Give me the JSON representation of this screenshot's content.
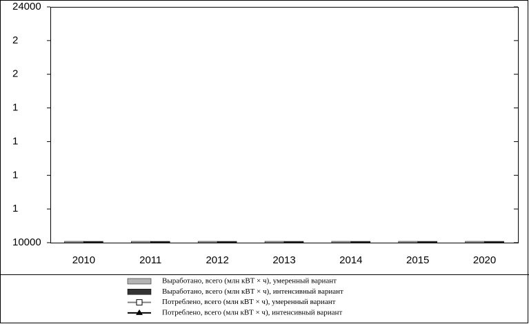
{
  "chart_data": {
    "type": "bar",
    "categories": [
      "2010",
      "2011",
      "2012",
      "2013",
      "2014",
      "2015",
      "2020"
    ],
    "series": [
      {
        "name": "Выработано, всего (млн кВТ × ч), умеренный вариант",
        "color": "#b4b4b4",
        "kind": "bar",
        "values": [
          10080,
          10080,
          10080,
          10080,
          10080,
          10080,
          10080
        ]
      },
      {
        "name": "Выработано, всего (млн кВТ × ч), интенсивный вариант",
        "color": "#333333",
        "kind": "bar",
        "values": [
          10080,
          10080,
          10080,
          10080,
          10080,
          10080,
          10080
        ]
      },
      {
        "name": "Потреблено, всего (млн кВТ × ч), умеренный вариант",
        "color": "#808080",
        "kind": "line",
        "marker": "square",
        "values": [
          null,
          null,
          null,
          null,
          null,
          null,
          null
        ]
      },
      {
        "name": "Потреблено, всего (млн кВТ × ч), интенсивный вариант",
        "color": "#000000",
        "kind": "line",
        "marker": "triangle",
        "values": [
          null,
          null,
          null,
          null,
          null,
          null,
          null
        ]
      }
    ],
    "ylim": [
      10000,
      24000
    ],
    "yticks": [
      24000,
      {
        "value": 22000,
        "label": "2"
      },
      {
        "value": 20000,
        "label": "2"
      },
      {
        "value": 18000,
        "label": "1"
      },
      {
        "value": 16000,
        "label": "1"
      },
      {
        "value": 14000,
        "label": "1"
      },
      {
        "value": 12000,
        "label": "1"
      },
      10000
    ]
  }
}
